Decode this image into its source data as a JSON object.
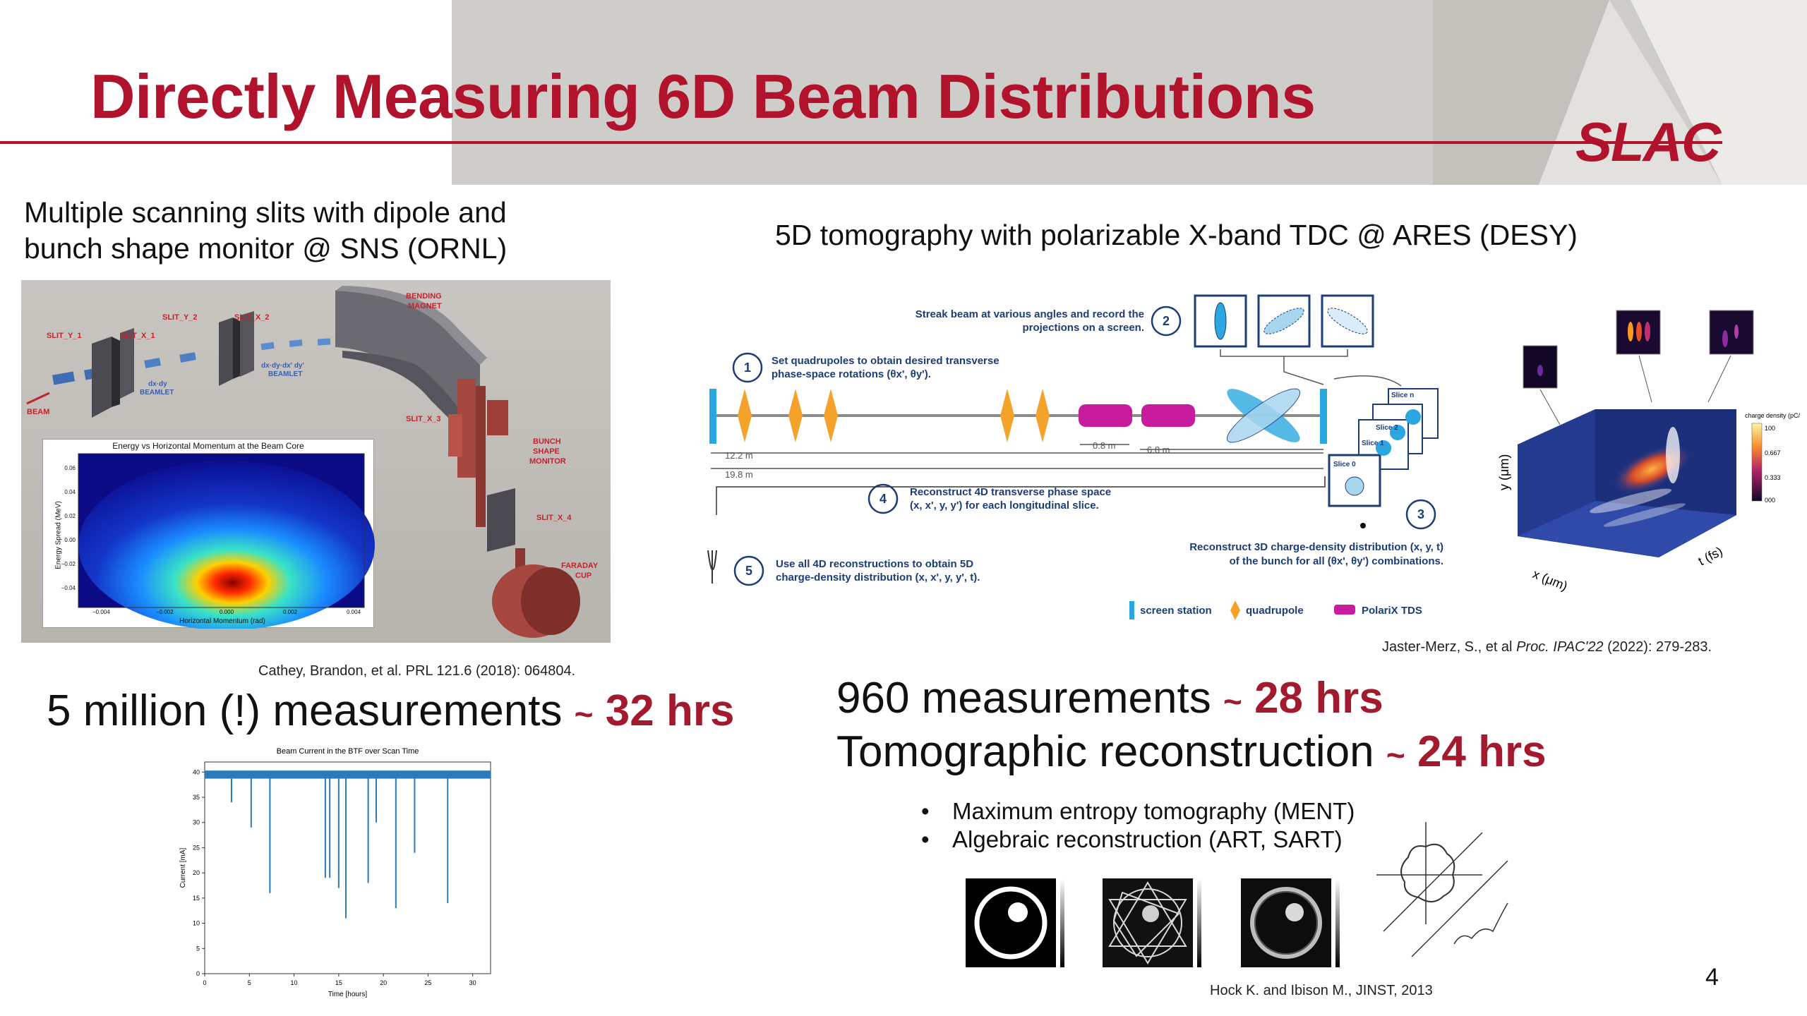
{
  "slide": {
    "title": "Directly Measuring 6D Beam Distributions",
    "logo": "SLAC",
    "page_number": "4",
    "accent_color": "#b0132b"
  },
  "left": {
    "caption_line1": "Multiple scanning slits with dipole and",
    "caption_line2": "bunch shape monitor @ SNS (ORNL)",
    "reference": "Cathey, Brandon, et al. PRL 121.6 (2018): 064804.",
    "stat_text": "5 million (!) measurements",
    "stat_tilde": "~",
    "stat_value": "32 hrs",
    "setup_labels": {
      "slit_y1": "SLIT_Y_1",
      "slit_x1": "SLIT_X_1",
      "slit_y2": "SLIT_Y_2",
      "slit_x2": "SLIT_X_2",
      "slit_x3": "SLIT_X_3",
      "slit_x4": "SLIT_X_4",
      "bending_magnet_1": "BENDING",
      "bending_magnet_2": "MAGNET",
      "beam": "BEAM",
      "beamlet_a1": "dx·dy",
      "beamlet_a2": "BEAMLET",
      "beamlet_b1": "dx·dy·dx' dy'",
      "beamlet_b2": "BEAMLET",
      "bsm1": "BUNCH",
      "bsm2": "SHAPE",
      "bsm3": "MONITOR",
      "faraday1": "FARADAY",
      "faraday2": "CUP"
    },
    "heatmap": {
      "title": "Energy vs Horizontal Momentum at the Beam Core",
      "xlabel": "Horizontal Momentum (rad)",
      "ylabel": "Energy Spread (MeV)",
      "xticks": [
        "−0.004",
        "−0.002",
        "0.000",
        "0.002",
        "0.004"
      ],
      "yticks": [
        "0.06",
        "0.04",
        "0.02",
        "0.00",
        "−0.02",
        "−0.04"
      ]
    }
  },
  "right": {
    "caption": "5D tomography with polarizable X-band TDC @ ARES (DESY)",
    "reference_pre": "Jaster-Merz, S., et al ",
    "reference_it": "Proc. IPAC'22",
    "reference_post": " (2022): 279-283.",
    "stat1_text": "960 measurements",
    "stat1_tilde": "~",
    "stat1_value": "28 hrs",
    "stat2_text": "Tomographic reconstruction",
    "stat2_tilde": "~",
    "stat2_value": "24 hrs",
    "bullets": [
      "Maximum entropy tomography (MENT)",
      "Algebraic reconstruction (ART, SART)"
    ],
    "bottom_reference": "Hock K. and Ibison M., JINST, 2013",
    "diagram": {
      "step1_a": "Set quadrupoles to obtain desired transverse",
      "step1_b": "phase-space rotations (θx', θy').",
      "step2_a": "Streak beam at various angles and record the",
      "step2_b": "projections on a screen.",
      "step3_a": "Reconstruct 3D charge-density distribution (x, y, t)",
      "step3_b": "of the bunch for all (θx', θy') combinations.",
      "step4_a": "Reconstruct 4D transverse phase space",
      "step4_b": "(x, x', y, y') for each longitudinal slice.",
      "step5_a": "Use all 4D reconstructions to obtain 5D",
      "step5_b": "charge-density distribution (x, x', y, y', t).",
      "n1": "1",
      "n2": "2",
      "n3": "3",
      "n4": "4",
      "n5": "5",
      "d1": "12.2 m",
      "d2": "19.8 m",
      "d3": "0.8 m",
      "d4": "6.8 m",
      "slice0": "Slice 0",
      "slice1": "Slice 1",
      "slice2": "Slice 2",
      "slicen": "Slice n",
      "legend_screen": "screen station",
      "legend_quad": "quadrupole",
      "legend_tds": "PolariX TDS",
      "colors": {
        "screen": "#2aa7e0",
        "quad": "#f5a22a",
        "tds": "#c81c9e",
        "ink": "#1d3d78"
      }
    },
    "volume": {
      "xlabel": "x (μm)",
      "ylabel": "y (μm)",
      "zlabel": "t (fs)",
      "colorbar_title": "charge density (pC/mm)",
      "colorbar_ticks": [
        "100",
        "0.667",
        "0.333",
        "000"
      ]
    }
  },
  "chart_data": {
    "type": "line",
    "title": "Beam Current in the BTF over Scan Time",
    "xlabel": "Time [hours]",
    "ylabel": "Current [mA]",
    "xlim": [
      0,
      32
    ],
    "ylim": [
      0,
      42
    ],
    "xticks": [
      "0",
      "5",
      "10",
      "15",
      "20",
      "25",
      "30"
    ],
    "yticks": [
      "0",
      "5",
      "10",
      "15",
      "20",
      "25",
      "30",
      "35",
      "40"
    ],
    "series": [
      {
        "baseline": 39.5,
        "dips": [
          {
            "x": 3.0,
            "y": 34
          },
          {
            "x": 5.2,
            "y": 29
          },
          {
            "x": 7.3,
            "y": 16
          },
          {
            "x": 13.5,
            "y": 19
          },
          {
            "x": 14.0,
            "y": 19
          },
          {
            "x": 15.0,
            "y": 17
          },
          {
            "x": 15.8,
            "y": 11
          },
          {
            "x": 18.3,
            "y": 18
          },
          {
            "x": 19.2,
            "y": 30
          },
          {
            "x": 21.4,
            "y": 13
          },
          {
            "x": 23.5,
            "y": 24
          },
          {
            "x": 27.2,
            "y": 14
          }
        ]
      }
    ]
  }
}
